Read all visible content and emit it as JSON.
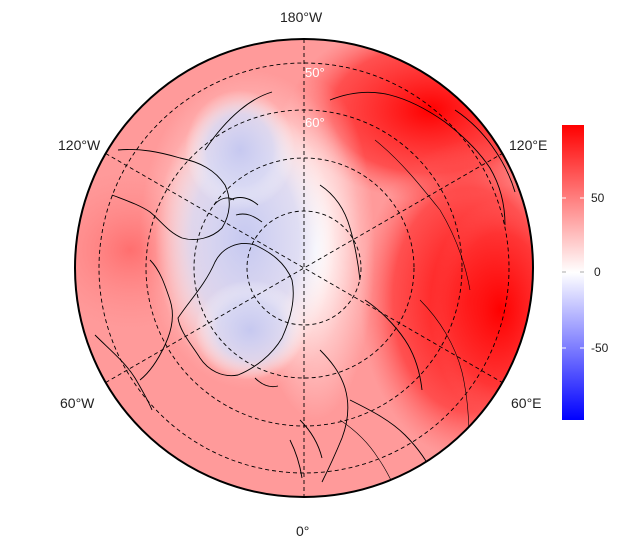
{
  "longitude_labels": {
    "top": "180°W",
    "bottom": "0°",
    "upper_left": "120°W",
    "upper_right": "120°E",
    "lower_left": "60°W",
    "lower_right": "60°E"
  },
  "latitude_labels": [
    "50°",
    "60°"
  ],
  "colorbar": {
    "ticks": [
      "50",
      "0",
      "-50"
    ],
    "colors": {
      "high": "#ff0000",
      "mid": "#ffffff",
      "low": "#0000ff"
    }
  },
  "colors": {
    "graticule": "#000000",
    "coastline": "#000000",
    "frame": "#000000"
  }
}
